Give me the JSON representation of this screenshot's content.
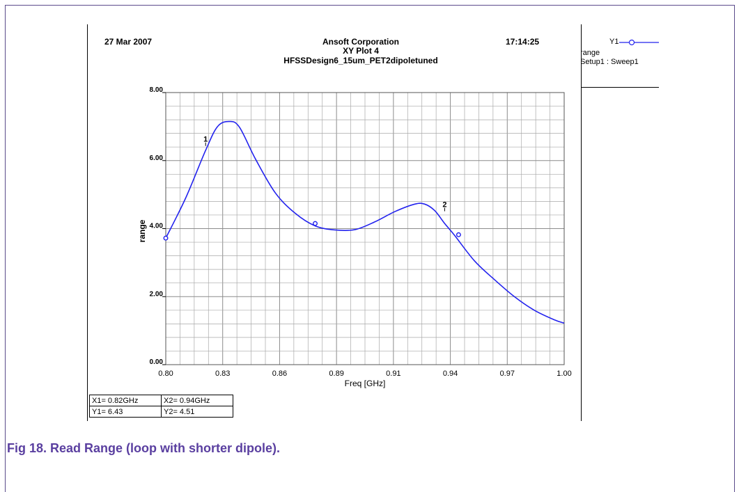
{
  "header": {
    "date": "27 Mar 2007",
    "company": "Ansoft Corporation",
    "plot_name": "XY Plot 4",
    "design": "HFSSDesign6_15um_PET2dipoletuned",
    "time": "17:14:25"
  },
  "legend": {
    "series_label": "Y1",
    "line1": "range",
    "line2": "Setup1 : Sweep1"
  },
  "markers": {
    "x1": "X1= 0.82GHz",
    "y1": "Y1= 6.43",
    "x2": "X2= 0.94GHz",
    "y2": "Y2= 4.51"
  },
  "caption": "Fig 18. Read Range (loop with shorter dipole).",
  "colors": {
    "series": "#2222ee",
    "grid": "#a8a8a8",
    "caption": "#5a3fa0"
  },
  "chart_data": {
    "type": "line",
    "title": "HFSSDesign6_15um_PET2dipoletuned",
    "xlabel": "Freq [GHz]",
    "ylabel": "range",
    "xlim": [
      0.8,
      1.0
    ],
    "ylim": [
      0.0,
      8.0
    ],
    "x_ticks": [
      "0.80",
      "0.83",
      "0.86",
      "0.89",
      "0.91",
      "0.94",
      "0.97",
      "1.00"
    ],
    "y_ticks": [
      "0.00",
      "2.00",
      "4.00",
      "6.00",
      "8.00"
    ],
    "grid": true,
    "series": [
      {
        "name": "range",
        "x": [
          0.8,
          0.81,
          0.82,
          0.826,
          0.832,
          0.837,
          0.845,
          0.855,
          0.865,
          0.875,
          0.885,
          0.895,
          0.905,
          0.915,
          0.925,
          0.93,
          0.935,
          0.94,
          0.945,
          0.955,
          0.965,
          0.975,
          0.985,
          0.995,
          1.0
        ],
        "y": [
          3.72,
          4.9,
          6.3,
          7.0,
          7.15,
          6.98,
          6.05,
          5.05,
          4.45,
          4.08,
          3.96,
          3.97,
          4.2,
          4.5,
          4.72,
          4.72,
          4.53,
          4.15,
          3.8,
          3.05,
          2.5,
          2.0,
          1.6,
          1.32,
          1.22
        ]
      }
    ],
    "point_markers": [
      {
        "x": 0.8,
        "y": 3.72
      },
      {
        "x": 0.875,
        "y": 4.15
      },
      {
        "x": 0.947,
        "y": 3.82
      }
    ],
    "annotations": [
      {
        "label": "1",
        "x": 0.82,
        "y": 6.43
      },
      {
        "label": "2",
        "x": 0.94,
        "y": 4.51
      }
    ]
  }
}
